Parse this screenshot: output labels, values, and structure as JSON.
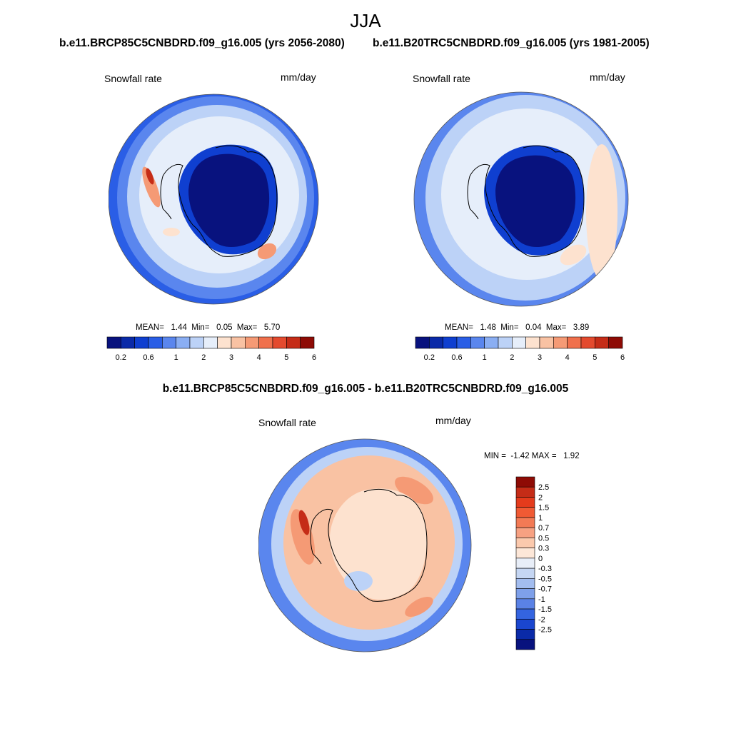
{
  "header": {
    "title": "JJA"
  },
  "panels": [
    {
      "title": "b.e11.BRCP85C5CNBDRD.f09_g16.005 (yrs 2056-2080)",
      "left_label": "Snowfall rate",
      "right_label": "mm/day",
      "stats": "MEAN=   1.44  Min=   0.05  Max=   5.70"
    },
    {
      "title": "b.e11.B20TRC5CNBDRD.f09_g16.005 (yrs 1981-2005)",
      "left_label": "Snowfall rate",
      "right_label": "mm/day",
      "stats": "MEAN=   1.48  Min=   0.04  Max=   3.89"
    },
    {
      "title": "b.e11.BRCP85C5CNBDRD.f09_g16.005 - b.e11.B20TRC5CNBDRD.f09_g16.005",
      "left_label": "Snowfall rate",
      "right_label": "mm/day",
      "stats": "MIN =  -1.42 MAX =   1.92"
    }
  ],
  "colorbars": {
    "abs": {
      "colors": [
        "#08127e",
        "#0a2aa8",
        "#0f3fd0",
        "#2a5ee6",
        "#5a86ee",
        "#8aaef3",
        "#bcd2f7",
        "#e6eefa",
        "#fde2cf",
        "#f9c2a3",
        "#f59a75",
        "#f0704c",
        "#e44a2e",
        "#c52c17",
        "#8e0b05"
      ],
      "tick_labels": [
        "0.2",
        "0.6",
        "1",
        "2",
        "3",
        "4",
        "5",
        "6"
      ]
    },
    "diff": {
      "colors": [
        "#8e0b05",
        "#c52c17",
        "#e43b1c",
        "#f05a34",
        "#f37a55",
        "#f7a182",
        "#fbc9ad",
        "#fde7d8",
        "#e8eef8",
        "#c5d6f3",
        "#a3bdef",
        "#7ea0ea",
        "#5a82e6",
        "#3464e0",
        "#1a46cf",
        "#0a2aa8",
        "#08127e"
      ],
      "tick_labels": [
        "2.5",
        "2",
        "1.5",
        "1",
        "0.7",
        "0.5",
        "0.3",
        "0",
        "-0.3",
        "-0.5",
        "-0.7",
        "-1",
        "-1.5",
        "-2",
        "-2.5"
      ]
    }
  },
  "map_colors": {
    "continent_dark": "#08127e",
    "continent_mid": "#0f3fd0",
    "ocean_pale": "#e6eefa",
    "ocean_light": "#bcd2f7",
    "ocean_blue": "#5a86ee",
    "ocean_deep": "#2a5ee6",
    "warm_light": "#fde2cf",
    "warm_mid": "#f59a75",
    "warm_dark": "#c52c17"
  }
}
